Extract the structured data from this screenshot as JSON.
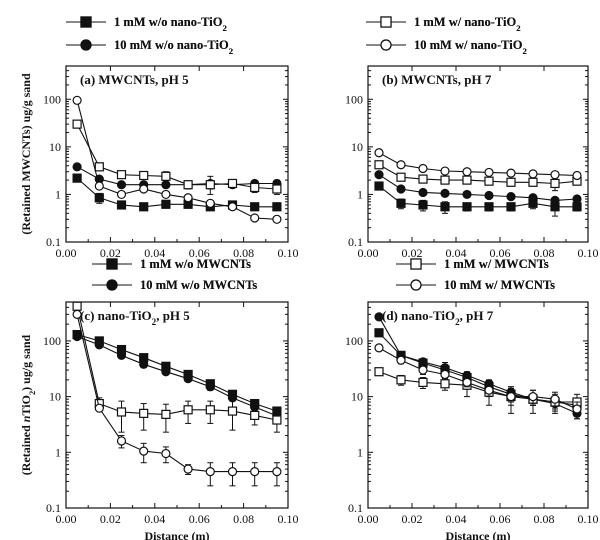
{
  "chart_data": [
    {
      "type": "scatter",
      "title": "(a) MWCNTs, pH 5",
      "xlabel": "",
      "ylabel": "(Retained MWCNTs) ug/g sand",
      "xlim": [
        0,
        0.1
      ],
      "ylim": [
        0.1,
        500
      ],
      "yscale": "log",
      "x_ticks": [
        "0.00",
        "0.02",
        "0.04",
        "0.06",
        "0.08",
        "0.10"
      ],
      "y_ticks": [
        "0.1",
        "1",
        "10",
        "100"
      ],
      "legend_position": "top",
      "series": [
        {
          "name": "1 mM w/o nano-TiO2",
          "marker": "filled-square",
          "connected": true,
          "x": [
            0.005,
            0.015,
            0.025,
            0.035,
            0.045,
            0.055,
            0.065,
            0.075,
            0.085,
            0.095
          ],
          "y": [
            2.2,
            0.85,
            0.6,
            0.55,
            0.62,
            0.62,
            0.55,
            0.6,
            0.55,
            0.55
          ],
          "err": [
            0,
            0.2,
            0.05,
            0.05,
            0.05,
            0.05,
            0.05,
            0.05,
            0.05,
            0.05
          ]
        },
        {
          "name": "10 mM w/o nano-TiO2",
          "marker": "filled-circle",
          "connected": true,
          "x": [
            0.005,
            0.015,
            0.025,
            0.035,
            0.045,
            0.055,
            0.065,
            0.075,
            0.085,
            0.095
          ],
          "y": [
            3.8,
            2.1,
            1.6,
            1.6,
            1.6,
            1.6,
            1.7,
            1.6,
            1.7,
            1.7
          ],
          "err": [
            0,
            0.2,
            0.2,
            0.2,
            0.2,
            0.2,
            0.7,
            0.2,
            0.2,
            0.3
          ]
        },
        {
          "name": "1 mM w/ nano-TiO2",
          "marker": "open-square",
          "connected": true,
          "x": [
            0.005,
            0.015,
            0.025,
            0.035,
            0.045,
            0.055,
            0.065,
            0.075,
            0.085,
            0.095
          ],
          "y": [
            30,
            3.8,
            2.6,
            2.5,
            2.4,
            1.6,
            1.6,
            1.7,
            1.4,
            1.3
          ],
          "err": [
            0,
            0.3,
            0.3,
            0.3,
            0.6,
            0.3,
            0.3,
            0.2,
            0.3,
            0.3
          ]
        },
        {
          "name": "10 mM w/ nano-TiO2",
          "marker": "open-circle",
          "connected": true,
          "x": [
            0.005,
            0.015,
            0.025,
            0.035,
            0.045,
            0.055,
            0.065,
            0.075,
            0.085,
            0.095
          ],
          "y": [
            95,
            1.5,
            1.0,
            1.3,
            1.0,
            0.85,
            0.65,
            0.55,
            0.32,
            0.3
          ],
          "err": [
            0,
            0.2,
            0.1,
            0.1,
            0.1,
            0.1,
            0.1,
            0.05,
            0.03,
            0.03
          ]
        }
      ]
    },
    {
      "type": "scatter",
      "title": "(b) MWCNTs, pH 7",
      "xlabel": "",
      "ylabel": "",
      "xlim": [
        0,
        0.1
      ],
      "ylim": [
        0.1,
        500
      ],
      "yscale": "log",
      "x_ticks": [
        "0.00",
        "0.02",
        "0.04",
        "0.06",
        "0.08",
        "0.10"
      ],
      "y_ticks": [
        "0.1",
        "1",
        "10",
        "100"
      ],
      "legend_position": "top",
      "series": [
        {
          "name": "1 mM w/o nano-TiO2",
          "marker": "filled-square",
          "connected": true,
          "x": [
            0.005,
            0.015,
            0.025,
            0.035,
            0.045,
            0.055,
            0.065,
            0.075,
            0.085,
            0.095
          ],
          "y": [
            1.5,
            0.65,
            0.6,
            0.55,
            0.55,
            0.55,
            0.55,
            0.65,
            0.55,
            0.55
          ],
          "err": [
            0,
            0.15,
            0.15,
            0.15,
            0.1,
            0.1,
            0.1,
            0.15,
            0.2,
            0.1
          ]
        },
        {
          "name": "10 mM w/o nano-TiO2",
          "marker": "filled-circle",
          "connected": true,
          "x": [
            0.005,
            0.015,
            0.025,
            0.035,
            0.045,
            0.055,
            0.065,
            0.075,
            0.085,
            0.095
          ],
          "y": [
            2.6,
            1.3,
            1.1,
            1.05,
            1.0,
            0.95,
            0.9,
            0.85,
            0.75,
            0.8
          ],
          "err": [
            0,
            0.1,
            0.1,
            0.1,
            0.1,
            0.1,
            0.1,
            0.1,
            0.1,
            0.1
          ]
        },
        {
          "name": "1 mM w/ nano-TiO2",
          "marker": "open-square",
          "connected": true,
          "x": [
            0.005,
            0.015,
            0.025,
            0.035,
            0.045,
            0.055,
            0.065,
            0.075,
            0.085,
            0.095
          ],
          "y": [
            4.2,
            2.3,
            2.1,
            2.0,
            2.0,
            1.9,
            1.8,
            1.8,
            1.7,
            1.9
          ],
          "err": [
            0,
            0.3,
            0.3,
            0.3,
            0.3,
            0.3,
            0.3,
            0.3,
            0.5,
            0.3
          ]
        },
        {
          "name": "10 mM w/ nano-TiO2",
          "marker": "open-circle",
          "connected": true,
          "x": [
            0.005,
            0.015,
            0.025,
            0.035,
            0.045,
            0.055,
            0.065,
            0.075,
            0.085,
            0.095
          ],
          "y": [
            7.5,
            4.2,
            3.5,
            3.1,
            3.0,
            2.9,
            2.8,
            2.7,
            2.6,
            2.5
          ],
          "err": [
            0,
            0.3,
            0.3,
            0.3,
            0.3,
            0.3,
            0.3,
            0.3,
            0.3,
            0.3
          ]
        }
      ]
    },
    {
      "type": "scatter",
      "title": "(c) nano-TiO2, pH 5",
      "xlabel": "Distance (m)",
      "ylabel": "(Retained nTiO2) ug/g sand",
      "xlim": [
        0,
        0.1
      ],
      "ylim": [
        0.1,
        500
      ],
      "yscale": "log",
      "x_ticks": [
        "0.00",
        "0.02",
        "0.04",
        "0.06",
        "0.08",
        "0.10"
      ],
      "y_ticks": [
        "0.1",
        "1",
        "10",
        "100"
      ],
      "legend_position": "top",
      "series": [
        {
          "name": "1 mM w/o MWCNTs",
          "marker": "filled-square",
          "connected": true,
          "x": [
            0.005,
            0.015,
            0.025,
            0.035,
            0.045,
            0.055,
            0.065,
            0.075,
            0.085,
            0.095
          ],
          "y": [
            130,
            100,
            70,
            50,
            35,
            25,
            17,
            11,
            7.5,
            5.5
          ],
          "err": [
            0,
            5,
            5,
            4,
            3,
            2,
            2,
            1,
            1,
            0.5
          ]
        },
        {
          "name": "10 mM w/o MWCNTs",
          "marker": "filled-circle",
          "connected": true,
          "x": [
            0.005,
            0.015,
            0.025,
            0.035,
            0.045,
            0.055,
            0.065,
            0.075,
            0.085,
            0.095
          ],
          "y": [
            120,
            85,
            55,
            38,
            28,
            21,
            15,
            9.5,
            6.5,
            4.5
          ],
          "err": [
            0,
            5,
            5,
            4,
            3,
            2,
            2,
            1,
            1,
            0.5
          ]
        },
        {
          "name": "1 mM w/ MWCNTs",
          "marker": "open-square",
          "connected": true,
          "x": [
            0.005,
            0.015,
            0.025,
            0.035,
            0.045,
            0.055,
            0.065,
            0.075,
            0.085,
            0.095
          ],
          "y": [
            420,
            7.5,
            5.3,
            5.0,
            4.8,
            5.8,
            5.8,
            5.5,
            4.6,
            3.8
          ],
          "err": [
            0,
            2,
            3,
            2.5,
            2.5,
            2.5,
            2.5,
            3,
            1.5,
            1.5
          ]
        },
        {
          "name": "10 mM w/ MWCNTs",
          "marker": "open-circle",
          "connected": true,
          "x": [
            0.005,
            0.015,
            0.025,
            0.035,
            0.045,
            0.055,
            0.065,
            0.075,
            0.085,
            0.095
          ],
          "y": [
            300,
            6.2,
            1.6,
            1.05,
            0.95,
            0.5,
            0.45,
            0.45,
            0.45,
            0.45
          ],
          "err": [
            0,
            0.5,
            0.4,
            0.4,
            0.3,
            0.1,
            0.2,
            0.2,
            0.2,
            0.2
          ]
        }
      ]
    },
    {
      "type": "scatter",
      "title": "(d) nano-TiO2, pH 7",
      "xlabel": "Distance (m)",
      "ylabel": "",
      "xlim": [
        0,
        0.1
      ],
      "ylim": [
        0.1,
        500
      ],
      "yscale": "log",
      "x_ticks": [
        "0.00",
        "0.02",
        "0.04",
        "0.06",
        "0.08",
        "0.10"
      ],
      "y_ticks": [
        "0.1",
        "1",
        "10",
        "100"
      ],
      "legend_position": "top",
      "series": [
        {
          "name": "1 mM w/o MWCNTs",
          "marker": "filled-square",
          "connected": true,
          "x": [
            0.005,
            0.015,
            0.025,
            0.035,
            0.045,
            0.055,
            0.065,
            0.075,
            0.085,
            0.095
          ],
          "y": [
            140,
            55,
            40,
            30,
            22,
            15,
            11,
            9,
            8,
            7
          ],
          "err": [
            0,
            8,
            6,
            5,
            4,
            3,
            3,
            2,
            2,
            2
          ]
        },
        {
          "name": "10 mM w/o MWCNTs",
          "marker": "filled-circle",
          "connected": true,
          "x": [
            0.005,
            0.015,
            0.025,
            0.035,
            0.045,
            0.055,
            0.065,
            0.075,
            0.085,
            0.095
          ],
          "y": [
            270,
            55,
            42,
            33,
            24,
            17,
            12,
            9,
            7.5,
            5
          ],
          "err": [
            0,
            8,
            6,
            8,
            4,
            3,
            3,
            2,
            2,
            1
          ]
        },
        {
          "name": "1 mM w/ MWCNTs",
          "marker": "open-square",
          "connected": true,
          "x": [
            0.005,
            0.015,
            0.025,
            0.035,
            0.045,
            0.055,
            0.065,
            0.075,
            0.085,
            0.095
          ],
          "y": [
            28,
            20,
            18,
            17,
            16,
            12,
            10,
            9,
            8,
            8
          ],
          "err": [
            0,
            4,
            4,
            4,
            6,
            5,
            5,
            4,
            3,
            3
          ]
        },
        {
          "name": "10 mM w/ MWCNTs",
          "marker": "open-circle",
          "connected": true,
          "x": [
            0.005,
            0.015,
            0.025,
            0.035,
            0.045,
            0.055,
            0.065,
            0.075,
            0.085,
            0.095
          ],
          "y": [
            75,
            45,
            30,
            25,
            18,
            13,
            10,
            10,
            9,
            6
          ],
          "err": [
            0,
            6,
            5,
            4,
            3,
            3,
            3,
            3,
            3,
            2
          ]
        }
      ]
    }
  ]
}
